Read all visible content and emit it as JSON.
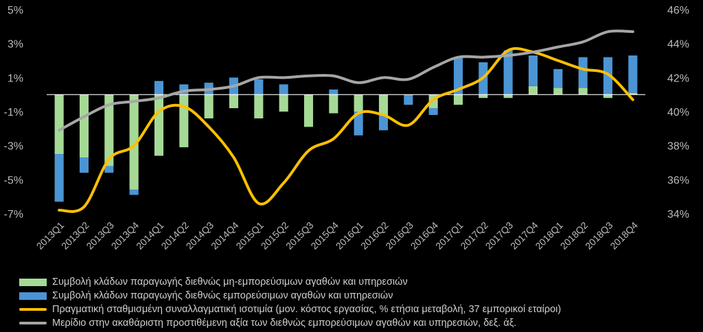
{
  "chart_data": {
    "type": "bar+line",
    "categories": [
      "2013Q1",
      "2013Q2",
      "2013Q3",
      "2013Q4",
      "2014Q1",
      "2014Q2",
      "2014Q3",
      "2014Q4",
      "2015Q1",
      "2015Q2",
      "2015Q3",
      "2015Q4",
      "2016Q1",
      "2016Q2",
      "2016Q3",
      "2016Q4",
      "2017Q1",
      "2017Q2",
      "2017Q3",
      "2017Q4",
      "2018Q1",
      "2018Q2",
      "2018Q3",
      "2018Q4"
    ],
    "y_left": {
      "ticks": [
        "5%",
        "3%",
        "1%",
        "-1%",
        "-3%",
        "-5%",
        "-7%"
      ],
      "ylim": [
        -7,
        5
      ]
    },
    "y_right": {
      "ticks": [
        "46%",
        "44%",
        "42%",
        "40%",
        "38%",
        "36%",
        "34%"
      ],
      "ylim": [
        34,
        46
      ]
    },
    "series": [
      {
        "name": "Συμβολή κλάδων παραγωγής διεθνώς μη-εμπορεύσιμων αγαθών και υπηρεσιών",
        "kind": "bar",
        "axis": "left",
        "color": "#a6d996",
        "values": [
          -3.5,
          -3.7,
          -4.2,
          -5.6,
          -3.6,
          -3.1,
          -1.4,
          -0.8,
          -1.4,
          -1.0,
          -1.9,
          -1.1,
          -1.0,
          -1.2,
          0.0,
          -0.8,
          -0.6,
          -0.2,
          -0.2,
          0.5,
          0.4,
          0.4,
          -0.2,
          0.1
        ]
      },
      {
        "name": "Συμβολή κλάδων παραγωγής διεθνώς εμπορεύσιμων αγαθών και υπηρεσιών",
        "kind": "bar",
        "axis": "left",
        "color": "#4b95d5",
        "values": [
          -2.8,
          -0.9,
          -0.4,
          -0.3,
          0.8,
          0.6,
          0.7,
          1.0,
          0.9,
          0.6,
          0.0,
          0.3,
          -1.4,
          -0.9,
          -0.6,
          -0.4,
          2.2,
          1.9,
          2.6,
          1.8,
          1.1,
          1.8,
          2.2,
          2.2
        ]
      },
      {
        "name": "Πραγματική σταθμισμένη συναλλαγματική ισοτιμία (μον. κόστος εργασίας, % ετήσια μεταβολή, 37 εμπορικοί εταίροι)",
        "kind": "line",
        "axis": "left",
        "color": "#ffc000",
        "values": [
          -6.8,
          -6.6,
          -3.8,
          -3.0,
          -1.0,
          -0.7,
          -1.9,
          -3.7,
          -6.4,
          -5.2,
          -3.3,
          -2.6,
          -1.1,
          -1.2,
          -1.8,
          -0.3,
          0.3,
          1.0,
          2.6,
          2.5,
          2.0,
          1.5,
          1.2,
          -0.3
        ]
      },
      {
        "name": "Μερίδιο στην ακαθάριστη προστιθέμενη αξία των διεθνώς εμπορεύσιμων αγαθών και υπηρεσιών, δεξ. άξ.",
        "kind": "line",
        "axis": "right",
        "color": "#a6a6a6",
        "values": [
          38.9,
          39.7,
          40.4,
          40.6,
          40.8,
          41.2,
          41.3,
          41.5,
          42.0,
          42.0,
          42.1,
          42.1,
          41.7,
          42.0,
          41.9,
          42.6,
          43.2,
          43.2,
          43.3,
          43.5,
          43.8,
          44.1,
          44.7,
          44.7
        ]
      }
    ]
  },
  "legend": [
    {
      "label": "Συμβολή κλάδων παραγωγής διεθνώς μη-εμπορεύσιμων αγαθών και υπηρεσιών",
      "color": "#a6d996",
      "kind": "box"
    },
    {
      "label": "Συμβολή κλάδων παραγωγής διεθνώς εμπορεύσιμων αγαθών και υπηρεσιών",
      "color": "#4b95d5",
      "kind": "box"
    },
    {
      "label": "Πραγματική σταθμισμένη συναλλαγματική ισοτιμία (μον. κόστος εργασίας, % ετήσια μεταβολή, 37 εμπορικοί εταίροι)",
      "color": "#ffc000",
      "kind": "line"
    },
    {
      "label": "Μερίδιο στην ακαθάριστη προστιθέμενη αξία των διεθνώς εμπορεύσιμων αγαθών και υπηρεσιών, δεξ. άξ.",
      "color": "#a6a6a6",
      "kind": "line"
    }
  ]
}
